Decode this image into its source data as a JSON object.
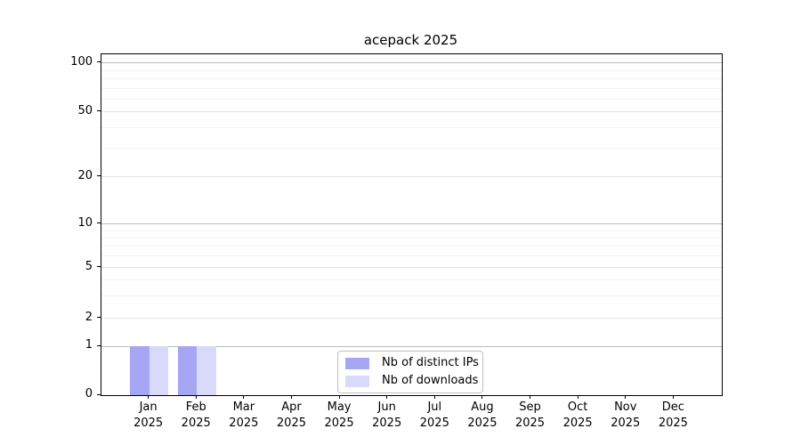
{
  "chart_data": {
    "type": "bar",
    "title": "acepack 2025",
    "xlabel": "",
    "ylabel": "",
    "categories": [
      "Jan",
      "Feb",
      "Mar",
      "Apr",
      "May",
      "Jun",
      "Jul",
      "Aug",
      "Sep",
      "Oct",
      "Nov",
      "Dec"
    ],
    "x_year_label": "2025",
    "series": [
      {
        "name": "Nb of distinct IPs",
        "color": "#a6a6f3",
        "values": [
          1,
          1,
          0,
          0,
          0,
          0,
          0,
          0,
          0,
          0,
          0,
          0
        ]
      },
      {
        "name": "Nb of downloads",
        "color": "#d9d9f9",
        "values": [
          1,
          1,
          0,
          0,
          0,
          0,
          0,
          0,
          0,
          0,
          0,
          0
        ]
      }
    ],
    "y_ticks": [
      0,
      1,
      2,
      5,
      10,
      20,
      50,
      100
    ],
    "y_minor_ticks": [
      3,
      4,
      6,
      7,
      8,
      9,
      30,
      40,
      60,
      70,
      80,
      90
    ],
    "ylim": [
      0,
      110
    ],
    "yscale": "log-like (linear 0-1 segment, log above 1)",
    "grid": "horizontal major and minor gridlines",
    "legend_position": "inside bottom-center",
    "colors": {
      "grid_power_of_ten": "#bcbcbc",
      "grid_major": "#e4e4e4",
      "grid_minor": "#f3f3f3",
      "axis": "#000000",
      "legend_border": "#bfbfbf"
    }
  }
}
